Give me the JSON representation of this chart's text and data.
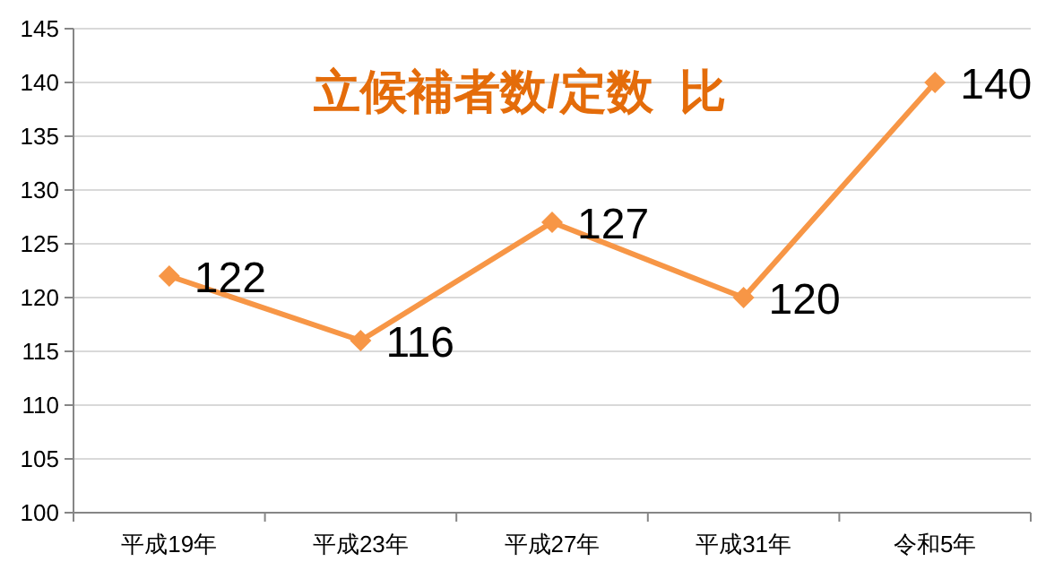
{
  "chart_data": {
    "type": "line",
    "title": "立候補者数/定数  比",
    "categories": [
      "平成19年",
      "平成23年",
      "平成27年",
      "平成31年",
      "令和5年"
    ],
    "values": [
      122,
      116,
      127,
      120,
      140
    ],
    "color": "#f79646",
    "ylim": [
      100,
      145
    ],
    "yticks": [
      100,
      105,
      110,
      115,
      120,
      125,
      130,
      135,
      140,
      145
    ],
    "grid": "y",
    "marker": "diamond",
    "data_labels": true
  }
}
